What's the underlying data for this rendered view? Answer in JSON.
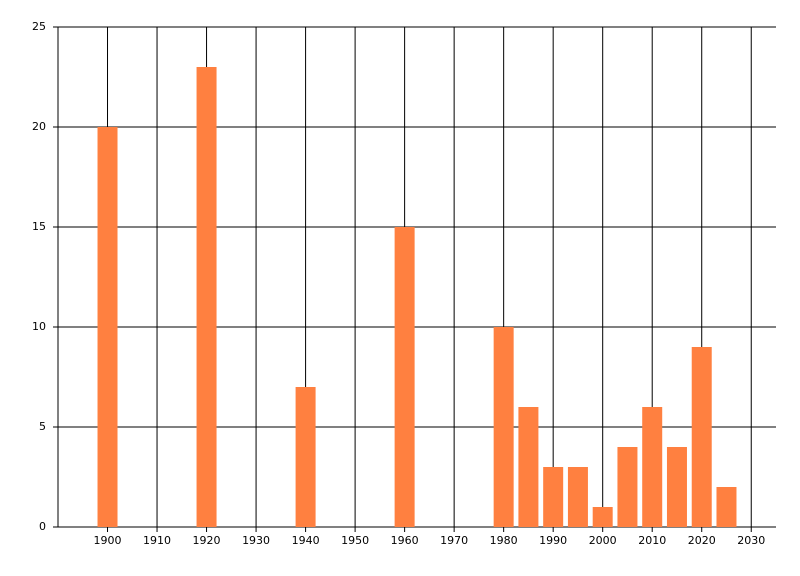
{
  "chart_data": {
    "type": "bar",
    "x": [
      1900,
      1920,
      1940,
      1960,
      1980,
      1985,
      1990,
      1995,
      2000,
      2005,
      2010,
      2015,
      2020,
      2025
    ],
    "values": [
      20,
      23,
      7,
      15,
      10,
      6,
      3,
      3,
      1,
      4,
      6,
      4,
      9,
      2
    ],
    "color": "#ff8040",
    "xlim": [
      1890,
      2035
    ],
    "xticks": [
      1900,
      1910,
      1920,
      1930,
      1940,
      1950,
      1960,
      1970,
      1980,
      1990,
      2000,
      2010,
      2020,
      2030
    ],
    "ylim": [
      0,
      25
    ],
    "yticks": [
      0,
      5,
      10,
      15,
      20,
      25
    ],
    "grid": true
  }
}
